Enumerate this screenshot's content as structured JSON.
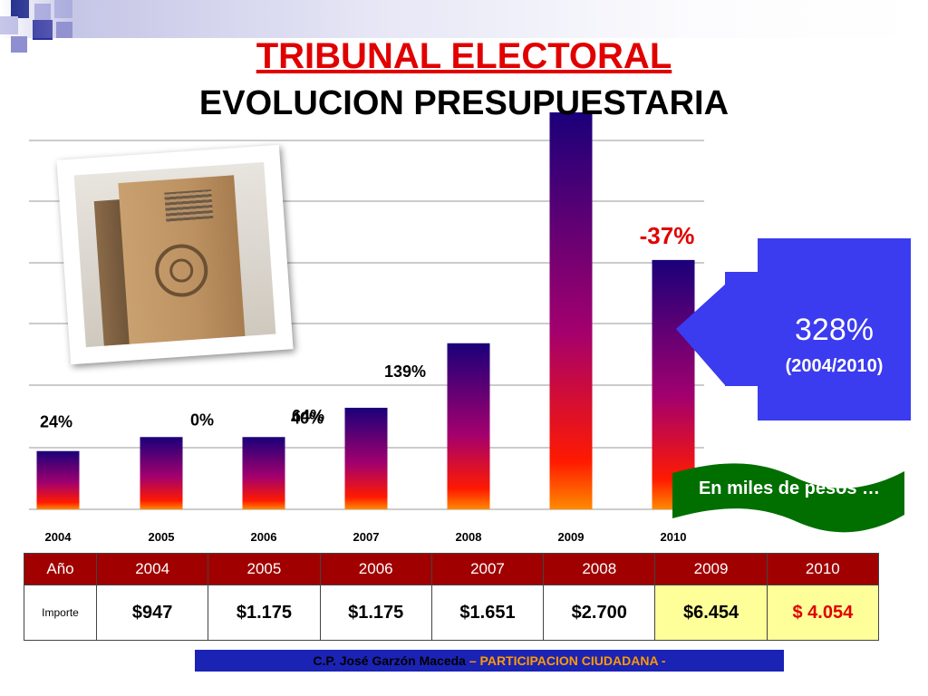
{
  "title": "TRIBUNAL ELECTORAL",
  "subtitle": "EVOLUCION PRESUPUESTARIA",
  "colors": {
    "title_red": "#e00000",
    "bar_top": "#1a007a",
    "bar_bottom": "#ff1a00",
    "callout_blue": "#3b3bef",
    "table_header": "#a00000",
    "highlight_yellow": "#ffff99",
    "flag_green": "#006f00",
    "footer_blue": "#1b23b5",
    "footer_orange": "#ff9900"
  },
  "chart_data": {
    "type": "bar",
    "title": "",
    "xlabel": "",
    "ylabel": "",
    "grid": true,
    "categories": [
      "2004",
      "2005",
      "2006",
      "2007",
      "2008",
      "2009",
      "2010"
    ],
    "values": [
      947,
      1175,
      1175,
      1651,
      2700,
      6454,
      4054
    ],
    "ylim": [
      0,
      6454
    ],
    "annotations": [
      "24%",
      "0%",
      "40%",
      "64%",
      "139%",
      "",
      "-37%"
    ]
  },
  "callout": {
    "value": "328%",
    "period": "(2004/2010)"
  },
  "unit_note": "En miles de pesos …",
  "table": {
    "row1_label": "Año",
    "row2_label": "Importe",
    "years": [
      "2004",
      "2005",
      "2006",
      "2007",
      "2008",
      "2009",
      "2010"
    ],
    "amounts": [
      "$947",
      "$1.175",
      "$1.175",
      "$1.651",
      "$2.700",
      "$6.454",
      "$ 4.054"
    ]
  },
  "footer": {
    "author": "C.P. José Garzón Maceda",
    "tagline": " – PARTICIPACION CIUDADANA -"
  },
  "icons": [
    "ballot-box-building-photo",
    "left-arrow-callout",
    "wavy-flag-banner"
  ]
}
